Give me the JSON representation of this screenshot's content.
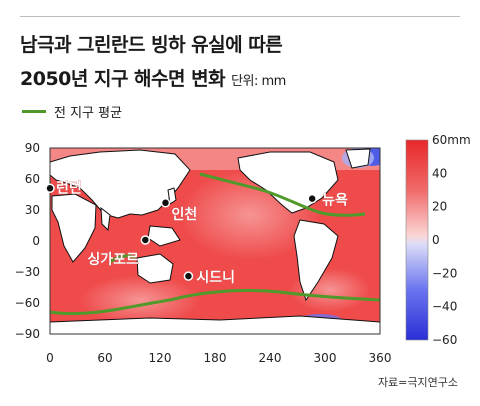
{
  "title_line1": "남극과 그린란드 빙하 유실에 따른",
  "title_line2": "2050년 지구 해수면 변화",
  "unit_label": "단위: mm",
  "legend_label": "전 지구 평균",
  "source": "자료=극지연구소",
  "x_ticks": [
    "0",
    "60",
    "120",
    "180",
    "240",
    "300",
    "360"
  ],
  "y_ticks": [
    "90",
    "60",
    "30",
    "0",
    "−30",
    "−60",
    "−90"
  ],
  "colorbar_labels": [
    "60mm",
    "40",
    "20",
    "0",
    "−20",
    "−40",
    "−60"
  ],
  "cities": [
    {
      "name": "런던",
      "lon": 0,
      "lat": 51
    },
    {
      "name": "인천",
      "lon": 126,
      "lat": 37
    },
    {
      "name": "싱가포르",
      "lon": 104,
      "lat": 1
    },
    {
      "name": "시드니",
      "lon": 151,
      "lat": -34
    },
    {
      "name": "뉴욕",
      "lon": 286,
      "lat": 41
    }
  ],
  "colors": {
    "ocean": "#ef4b4b",
    "ocean_light": "#f7a3a3",
    "negative": "#4f5ce6",
    "land": "#ffffff",
    "coast": "#111111",
    "mean_line": "#4f9a2a"
  }
}
